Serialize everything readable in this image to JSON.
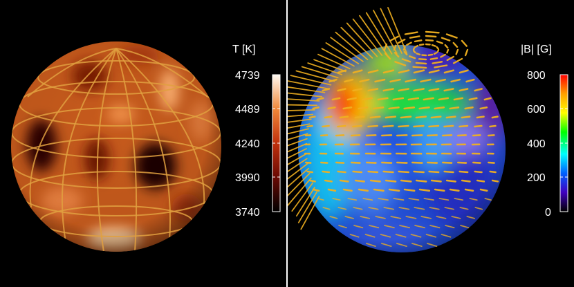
{
  "left_panel": {
    "colorbar": {
      "title": "T  [K]",
      "ticks": [
        "4739",
        "4489",
        "4240",
        "3990",
        "3740"
      ],
      "colors": [
        "#fffaf2",
        "#f0883a",
        "#c0300c",
        "#6a0a04",
        "#000000"
      ]
    },
    "globe": {
      "base_color": "#c65a1c",
      "grid_color": "#e0a040"
    }
  },
  "right_panel": {
    "colorbar": {
      "title": "|B|  [G]",
      "ticks": [
        "800",
        "600",
        "400",
        "200",
        "0"
      ],
      "colors": [
        "#ff0000",
        "#ffa000",
        "#ffff00",
        "#00ff00",
        "#00ffff",
        "#0060ff",
        "#4000c0",
        "#000000"
      ]
    },
    "globe": {
      "vector_color": "#f0b020"
    }
  }
}
